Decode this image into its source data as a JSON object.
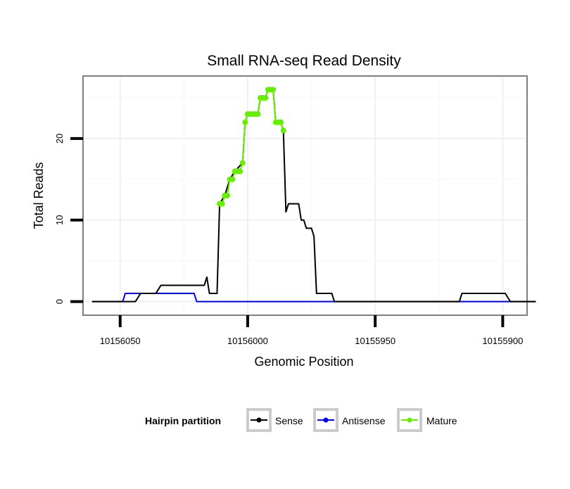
{
  "chart_data": {
    "type": "line",
    "title": "Small RNA-seq Read Density",
    "xlabel": "Genomic Position",
    "ylabel": "Total Reads",
    "x_reversed": true,
    "xlim": [
      10156064,
      10155891
    ],
    "ylim": [
      -1.5,
      27.5
    ],
    "x_ticks": [
      10156050,
      10156000,
      10155950,
      10155900
    ],
    "x_tick_labels": [
      "10156050",
      "10156000",
      "10155950",
      "10155900"
    ],
    "y_ticks": [
      0,
      10,
      20
    ],
    "y_tick_labels": [
      "0",
      "10",
      "20"
    ],
    "grid": true,
    "legend": {
      "title": "Hairpin partition",
      "position": "bottom",
      "entries": [
        "Sense",
        "Antisense",
        "Mature"
      ]
    },
    "series": [
      {
        "name": "Sense",
        "color": "#000000",
        "points": [
          [
            10156061,
            0
          ],
          [
            10156044,
            0
          ],
          [
            10156042,
            1
          ],
          [
            10156036,
            1
          ],
          [
            10156034,
            2
          ],
          [
            10156017,
            2
          ],
          [
            10156016,
            3
          ],
          [
            10156015,
            1
          ],
          [
            10156012,
            1
          ],
          [
            10156011,
            12
          ],
          [
            10156009,
            13
          ],
          [
            10156007,
            15
          ],
          [
            10156005,
            16
          ],
          [
            10156002,
            17
          ],
          [
            10156001,
            22
          ],
          [
            10156000,
            23
          ],
          [
            10155996,
            23
          ],
          [
            10155995,
            25
          ],
          [
            10155993,
            25
          ],
          [
            10155992,
            26
          ],
          [
            10155990,
            26
          ],
          [
            10155989,
            22
          ],
          [
            10155987,
            22
          ],
          [
            10155986,
            21
          ],
          [
            10155985,
            11
          ],
          [
            10155984,
            12
          ],
          [
            10155980,
            12
          ],
          [
            10155979,
            10
          ],
          [
            10155978,
            10
          ],
          [
            10155977,
            9
          ],
          [
            10155975,
            9
          ],
          [
            10155974,
            8
          ],
          [
            10155973,
            1
          ],
          [
            10155967,
            1
          ],
          [
            10155966,
            0
          ],
          [
            10155917,
            0
          ],
          [
            10155916,
            1
          ],
          [
            10155899,
            1
          ],
          [
            10155897,
            0
          ],
          [
            10155887,
            0
          ]
        ]
      },
      {
        "name": "Antisense",
        "color": "#0000ff",
        "points": [
          [
            10156061,
            0
          ],
          [
            10156049,
            0
          ],
          [
            10156048,
            1
          ],
          [
            10156021,
            1
          ],
          [
            10156020,
            0
          ],
          [
            10155887,
            0
          ]
        ]
      },
      {
        "name": "Mature",
        "color": "#66ee00",
        "points": [
          [
            10156011,
            12
          ],
          [
            10156010,
            12
          ],
          [
            10156009,
            13
          ],
          [
            10156008,
            13
          ],
          [
            10156007,
            15
          ],
          [
            10156006,
            15
          ],
          [
            10156005,
            16
          ],
          [
            10156004,
            16
          ],
          [
            10156003,
            16
          ],
          [
            10156002,
            17
          ],
          [
            10156001,
            22
          ],
          [
            10156000,
            23
          ],
          [
            10155999,
            23
          ],
          [
            10155998,
            23
          ],
          [
            10155997,
            23
          ],
          [
            10155996,
            23
          ],
          [
            10155995,
            25
          ],
          [
            10155994,
            25
          ],
          [
            10155993,
            25
          ],
          [
            10155992,
            26
          ],
          [
            10155991,
            26
          ],
          [
            10155990,
            26
          ],
          [
            10155989,
            22
          ],
          [
            10155988,
            22
          ],
          [
            10155987,
            22
          ],
          [
            10155986,
            21
          ]
        ]
      }
    ]
  }
}
